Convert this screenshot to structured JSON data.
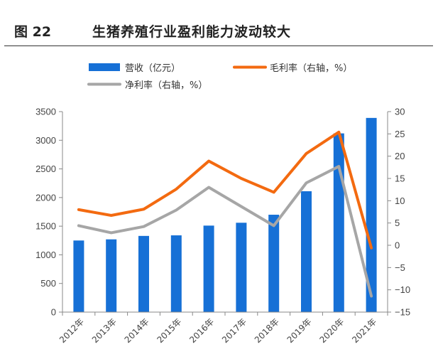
{
  "header": {
    "figure_label": "图 22",
    "title": "生猪养殖行业盈利能力波动较大"
  },
  "chart_data": {
    "type": "bar",
    "categories": [
      "2012年",
      "2013年",
      "2014年",
      "2015年",
      "2016年",
      "2017年",
      "2018年",
      "2019年",
      "2020年",
      "2021年"
    ],
    "series": [
      {
        "name": "营收（亿元）",
        "type": "bar",
        "axis": "left",
        "color": "#1670D6",
        "values": [
          1250,
          1270,
          1330,
          1340,
          1510,
          1560,
          1700,
          2110,
          3120,
          3390
        ]
      },
      {
        "name": "毛利率（右轴，%）",
        "type": "line",
        "axis": "right",
        "color": "#F36A10",
        "values": [
          8.0,
          6.7,
          8.1,
          12.6,
          18.9,
          15.0,
          11.9,
          20.6,
          25.4,
          -0.6
        ]
      },
      {
        "name": "净利率（右轴，%）",
        "type": "line",
        "axis": "right",
        "color": "#A6A6A6",
        "values": [
          4.4,
          2.8,
          4.2,
          7.9,
          13.0,
          8.7,
          4.4,
          14.0,
          17.7,
          -11.4
        ]
      }
    ],
    "y_left": {
      "ylim": [
        0,
        3500
      ],
      "ticks": [
        "0",
        "500",
        "1000",
        "1500",
        "2000",
        "2500",
        "3000",
        "3500"
      ]
    },
    "y_right": {
      "ylim": [
        -15,
        30
      ],
      "ticks": [
        "-15",
        "-10",
        "-5",
        "0",
        "5",
        "10",
        "15",
        "20",
        "25",
        "30"
      ]
    },
    "legend_position": "top",
    "grid": false
  }
}
